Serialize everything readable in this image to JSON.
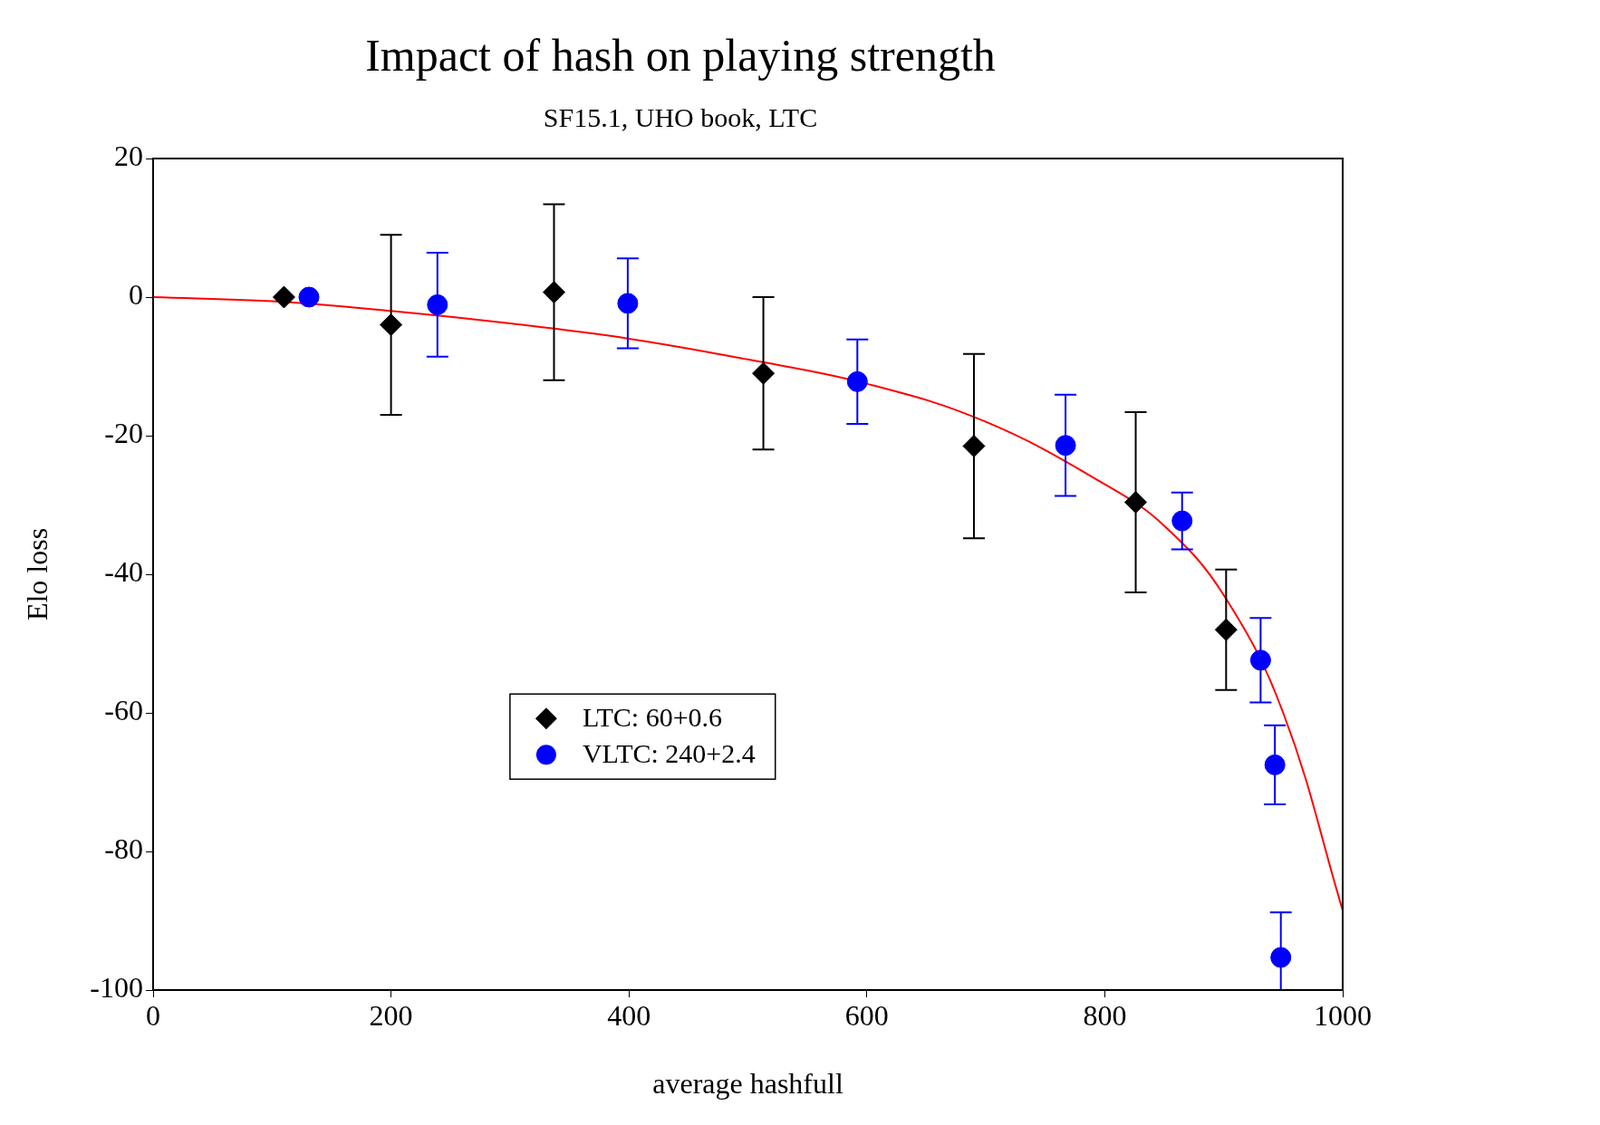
{
  "chart_data": {
    "type": "scatter",
    "title": "Impact of hash on playing strength",
    "subtitle": "SF15.1, UHO book, LTC",
    "x_label": "average hashfull",
    "y_label": "Elo loss",
    "xlim": [
      0,
      1000
    ],
    "xticks": [
      0,
      200,
      400,
      600,
      800,
      1000
    ],
    "ylim": [
      -100,
      20
    ],
    "yticks": [
      -100,
      -80,
      -60,
      -40,
      -20,
      0,
      20
    ],
    "grid": false,
    "legend": "center",
    "series": [
      {
        "name": "LTC: 60+0.6",
        "color": "#000000",
        "marker": "diamond",
        "x": [
          110,
          200,
          337,
          513,
          690,
          826,
          902
        ],
        "values": [
          0,
          -4,
          0.7,
          -11,
          -21.5,
          -29.6,
          -48
        ],
        "errors": [
          null,
          13,
          12.7,
          11,
          13.3,
          13,
          8.7
        ]
      },
      {
        "name": "VLTC: 240+2.4",
        "color": "#0000ff",
        "marker": "circle",
        "x": [
          131,
          239,
          399,
          592,
          767,
          865,
          931,
          943,
          948
        ],
        "values": [
          0,
          -1.1,
          -0.9,
          -12.2,
          -21.4,
          -32.3,
          -52.4,
          -67.5,
          -95.3
        ],
        "errors": [
          null,
          7.5,
          6.5,
          6.1,
          7.3,
          4.1,
          6.1,
          5.7,
          6.5
        ]
      },
      {
        "type": "line",
        "color": "#ff0000",
        "line_style": "solid",
        "x": [
          0,
          100,
          200,
          300,
          400,
          500,
          600,
          700,
          800,
          850,
          900,
          950,
          1000
        ],
        "values": [
          0,
          -0.6,
          -2,
          -3.8,
          -6,
          -9,
          -12.5,
          -18,
          -27,
          -33,
          -43,
          -60,
          -88.5
        ]
      }
    ]
  }
}
